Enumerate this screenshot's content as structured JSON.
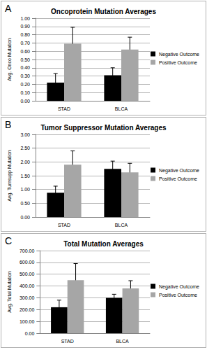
{
  "chart_data": [
    {
      "type": "bar",
      "annotation": "A",
      "title": "Oncoprotein Mutation Averages",
      "y_label": "Avg. Onco Mutation",
      "categories": [
        "STAD",
        "BLCA"
      ],
      "series": [
        {
          "name": "Negative Outcome",
          "color": "#000000",
          "values": [
            0.22,
            0.31
          ],
          "errors": [
            0.11,
            0.09
          ]
        },
        {
          "name": "Positive Outcome",
          "color": "#a6a6a6",
          "values": [
            0.69,
            0.62
          ],
          "errors": [
            0.2,
            0.15
          ]
        }
      ],
      "ylim": [
        0,
        1
      ],
      "yticks": [
        {
          "value": 0,
          "label": "0.00"
        },
        {
          "value": 0.1,
          "label": "0.10"
        },
        {
          "value": 0.2,
          "label": "0.20"
        },
        {
          "value": 0.3,
          "label": "0.30"
        },
        {
          "value": 0.4,
          "label": "0.40"
        },
        {
          "value": 0.5,
          "label": "0.50"
        },
        {
          "value": 0.6,
          "label": "0.60"
        },
        {
          "value": 0.7,
          "label": "0.70"
        },
        {
          "value": 0.8,
          "label": "0.80"
        },
        {
          "value": 0.9,
          "label": "0.90"
        },
        {
          "value": 1,
          "label": "1.00"
        }
      ],
      "grid": true,
      "legend": "right"
    },
    {
      "type": "bar",
      "annotation": "B",
      "title": "Tumor Suppressor Mutation Averages",
      "y_label": "Avg. Tumsupp Mutation",
      "categories": [
        "STAD",
        "BLCA"
      ],
      "series": [
        {
          "name": "Negative Outcome",
          "color": "#000000",
          "values": [
            0.88,
            1.75
          ],
          "errors": [
            0.24,
            0.28
          ]
        },
        {
          "name": "Positive Outcome",
          "color": "#a6a6a6",
          "values": [
            1.9,
            1.62
          ],
          "errors": [
            0.5,
            0.33
          ]
        }
      ],
      "ylim": [
        0,
        3
      ],
      "yticks": [
        {
          "value": 0,
          "label": "0.00"
        },
        {
          "value": 0.5,
          "label": "0.50"
        },
        {
          "value": 1,
          "label": "1.00"
        },
        {
          "value": 1.5,
          "label": "1.50"
        },
        {
          "value": 2,
          "label": "2.00"
        },
        {
          "value": 2.5,
          "label": "2.50"
        },
        {
          "value": 3,
          "label": "3.00"
        }
      ],
      "grid": true,
      "legend": "right"
    },
    {
      "type": "bar",
      "annotation": "C",
      "title": "Total Mutation Averages",
      "y_label": "Avg. Total Mutation",
      "categories": [
        "STAD",
        "BLCA"
      ],
      "series": [
        {
          "name": "Negative Outcome",
          "color": "#000000",
          "values": [
            220,
            300
          ],
          "errors": [
            60,
            30
          ]
        },
        {
          "name": "Positive Outcome",
          "color": "#a6a6a6",
          "values": [
            450,
            380
          ],
          "errors": [
            140,
            65
          ]
        }
      ],
      "ylim": [
        0,
        700
      ],
      "yticks": [
        {
          "value": 0,
          "label": "0.00"
        },
        {
          "value": 100,
          "label": "100.00"
        },
        {
          "value": 200,
          "label": "200.00"
        },
        {
          "value": 300,
          "label": "300.00"
        },
        {
          "value": 400,
          "label": "400.00"
        },
        {
          "value": 500,
          "label": "500.00"
        },
        {
          "value": 600,
          "label": "600.00"
        },
        {
          "value": 700,
          "label": "700.00"
        }
      ],
      "grid": true,
      "legend": "right"
    }
  ]
}
